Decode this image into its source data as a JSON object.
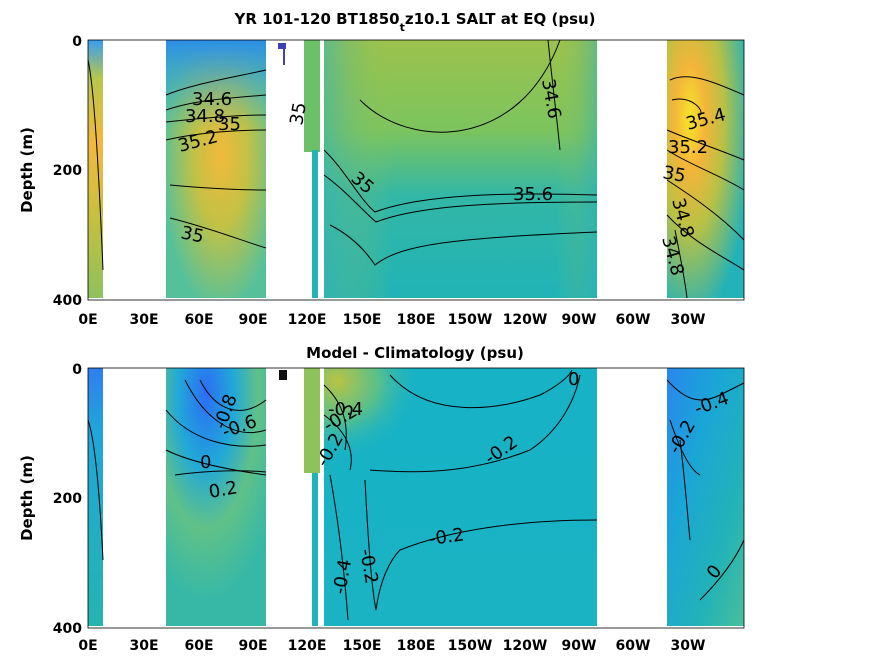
{
  "chart_data": [
    {
      "type": "heatmap",
      "title": "YR 101-120 BT1850",
      "title_sub": "t",
      "title_rest": "z10.1 SALT at EQ (psu)",
      "ylabel": "Depth (m)",
      "yticks": [
        "0",
        "200",
        "400"
      ],
      "ylim": [
        400,
        0
      ],
      "xticks": [
        "0E",
        "30E",
        "60E",
        "90E",
        "120E",
        "150E",
        "180E",
        "150W",
        "120W",
        "90W",
        "60W",
        "30W"
      ],
      "contour_labels": [
        "34.6",
        "34.8",
        "35.2",
        "35",
        "35",
        "35",
        "35",
        "34.8",
        "34.6",
        "35.6",
        "35.4",
        "35.2",
        "35",
        "34.8"
      ]
    },
    {
      "type": "heatmap",
      "title": "Model - Climatology (psu)",
      "ylabel": "Depth (m)",
      "yticks": [
        "0",
        "200",
        "400"
      ],
      "ylim": [
        400,
        0
      ],
      "xticks": [
        "0E",
        "30E",
        "60E",
        "90E",
        "120E",
        "150E",
        "180E",
        "150W",
        "120W",
        "90W",
        "60W",
        "30W"
      ],
      "contour_labels": [
        "-0.8",
        "-0.6",
        "0",
        "0.2",
        "-0.4",
        "-0.2",
        "-0.2",
        "-0.2",
        "-0.2",
        "-0.4",
        "-0.2",
        "0",
        "-0.4",
        "-0.2",
        "0"
      ]
    }
  ]
}
